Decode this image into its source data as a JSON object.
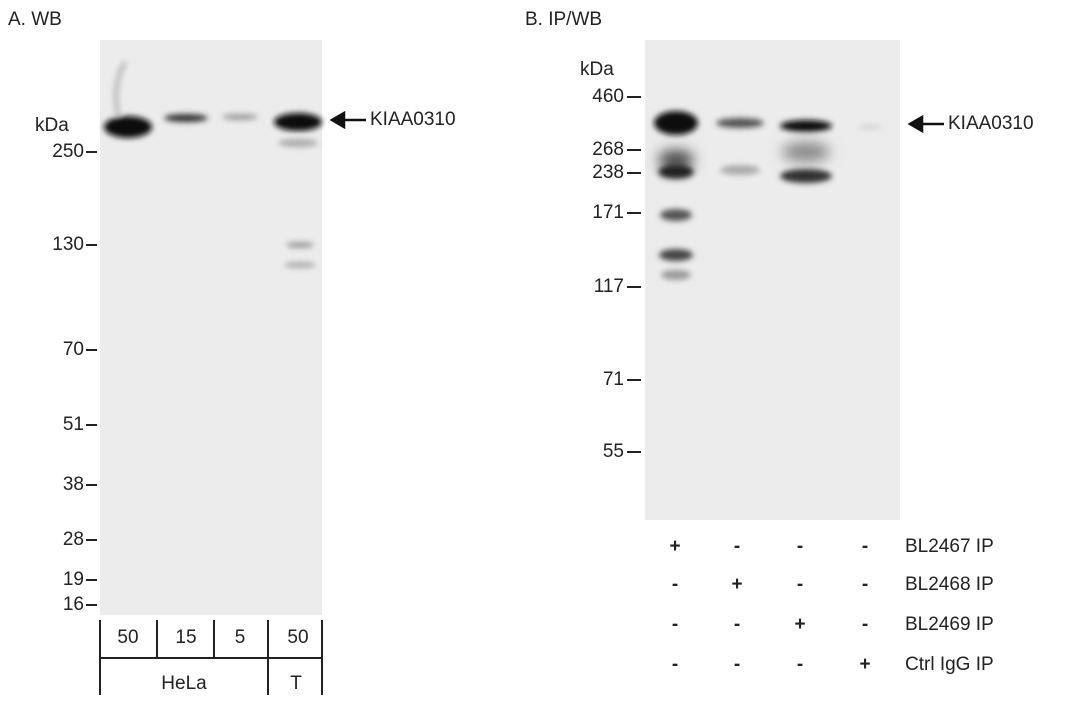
{
  "panels": [
    {
      "title": "A. WB",
      "unit": "kDa",
      "markers": [
        "250",
        "130",
        "70",
        "51",
        "38",
        "28",
        "19",
        "16"
      ],
      "target": "KIAA0310",
      "lanes": [
        "50",
        "15",
        "5",
        "50"
      ],
      "groups": [
        "HeLa",
        "T"
      ]
    },
    {
      "title": "B. IP/WB",
      "unit": "kDa",
      "markers": [
        "460",
        "268",
        "238",
        "171",
        "117",
        "71",
        "55"
      ],
      "target": "KIAA0310",
      "rows": [
        {
          "label": "BL2467 IP",
          "signs": [
            "+",
            "-",
            "-",
            "-"
          ]
        },
        {
          "label": "BL2468 IP",
          "signs": [
            "-",
            "+",
            "-",
            "-"
          ]
        },
        {
          "label": "BL2469 IP",
          "signs": [
            "-",
            "-",
            "+",
            "-"
          ]
        },
        {
          "label": "Ctrl IgG IP",
          "signs": [
            "-",
            "-",
            "-",
            "+"
          ]
        }
      ]
    }
  ]
}
